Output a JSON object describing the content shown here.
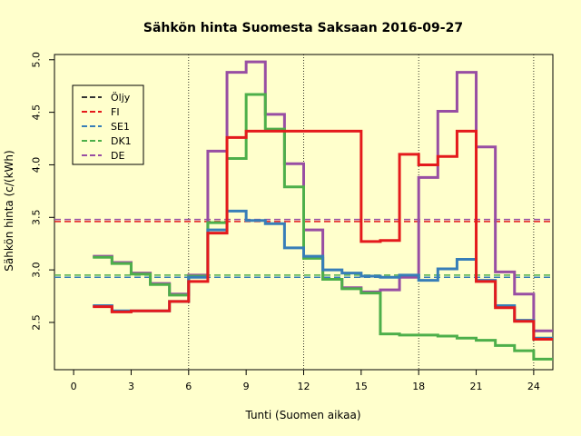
{
  "chart_data": {
    "type": "line",
    "title": "Sähkön hinta Suomesta Saksaan 2016-09-27",
    "xlabel": "Tunti (Suomen aikaa)",
    "ylabel": "Sähkön hinta (c/(kWh)",
    "xlim": [
      -1,
      25
    ],
    "ylim": [
      2.05,
      5.05
    ],
    "xticks": [
      "0",
      "3",
      "6",
      "9",
      "12",
      "15",
      "18",
      "21",
      "24"
    ],
    "yticks": [
      "2.5",
      "3.0",
      "3.5",
      "4.0",
      "4.5",
      "5.0"
    ],
    "vlines": [
      6,
      12,
      18,
      24
    ],
    "grid": "dotted vertical lines",
    "legend_position": "top-left",
    "colors": {
      "background": "#FFFFCC"
    },
    "series": [
      {
        "name": "Öljy",
        "color": "#333333",
        "style": "dashed-horizontal",
        "value": null
      },
      {
        "name": "FI",
        "color": "#E41A1C",
        "mean": 3.46,
        "values": [
          2.65,
          2.6,
          2.61,
          2.61,
          2.7,
          2.89,
          3.35,
          4.26,
          4.32,
          4.32,
          4.32,
          4.32,
          4.32,
          4.32,
          3.27,
          3.28,
          4.1,
          4.0,
          4.08,
          4.32,
          2.89,
          2.64,
          2.51,
          2.34
        ]
      },
      {
        "name": "SE1",
        "color": "#377EB8",
        "mean": 2.93,
        "values": [
          2.66,
          2.61,
          2.61,
          2.61,
          2.7,
          2.93,
          3.38,
          3.56,
          3.47,
          3.44,
          3.21,
          3.13,
          3.0,
          2.97,
          2.94,
          2.93,
          2.95,
          2.9,
          3.01,
          3.1,
          2.9,
          2.66,
          2.52,
          2.35
        ]
      },
      {
        "name": "DK1",
        "color": "#4DAF4A",
        "mean": 2.95,
        "values": [
          3.12,
          3.06,
          2.96,
          2.86,
          2.76,
          2.94,
          3.45,
          4.06,
          4.67,
          4.34,
          3.79,
          3.11,
          2.91,
          2.82,
          2.78,
          2.39,
          2.38,
          2.38,
          2.37,
          2.35,
          2.33,
          2.28,
          2.23,
          2.15
        ]
      },
      {
        "name": "DE",
        "color": "#984EA3",
        "mean": 3.48,
        "values": [
          3.13,
          3.07,
          2.97,
          2.87,
          2.77,
          2.95,
          4.13,
          4.88,
          4.98,
          4.48,
          4.01,
          3.38,
          2.91,
          2.83,
          2.79,
          2.81,
          2.93,
          3.88,
          4.51,
          4.88,
          4.17,
          2.98,
          2.77,
          2.42
        ]
      }
    ]
  }
}
